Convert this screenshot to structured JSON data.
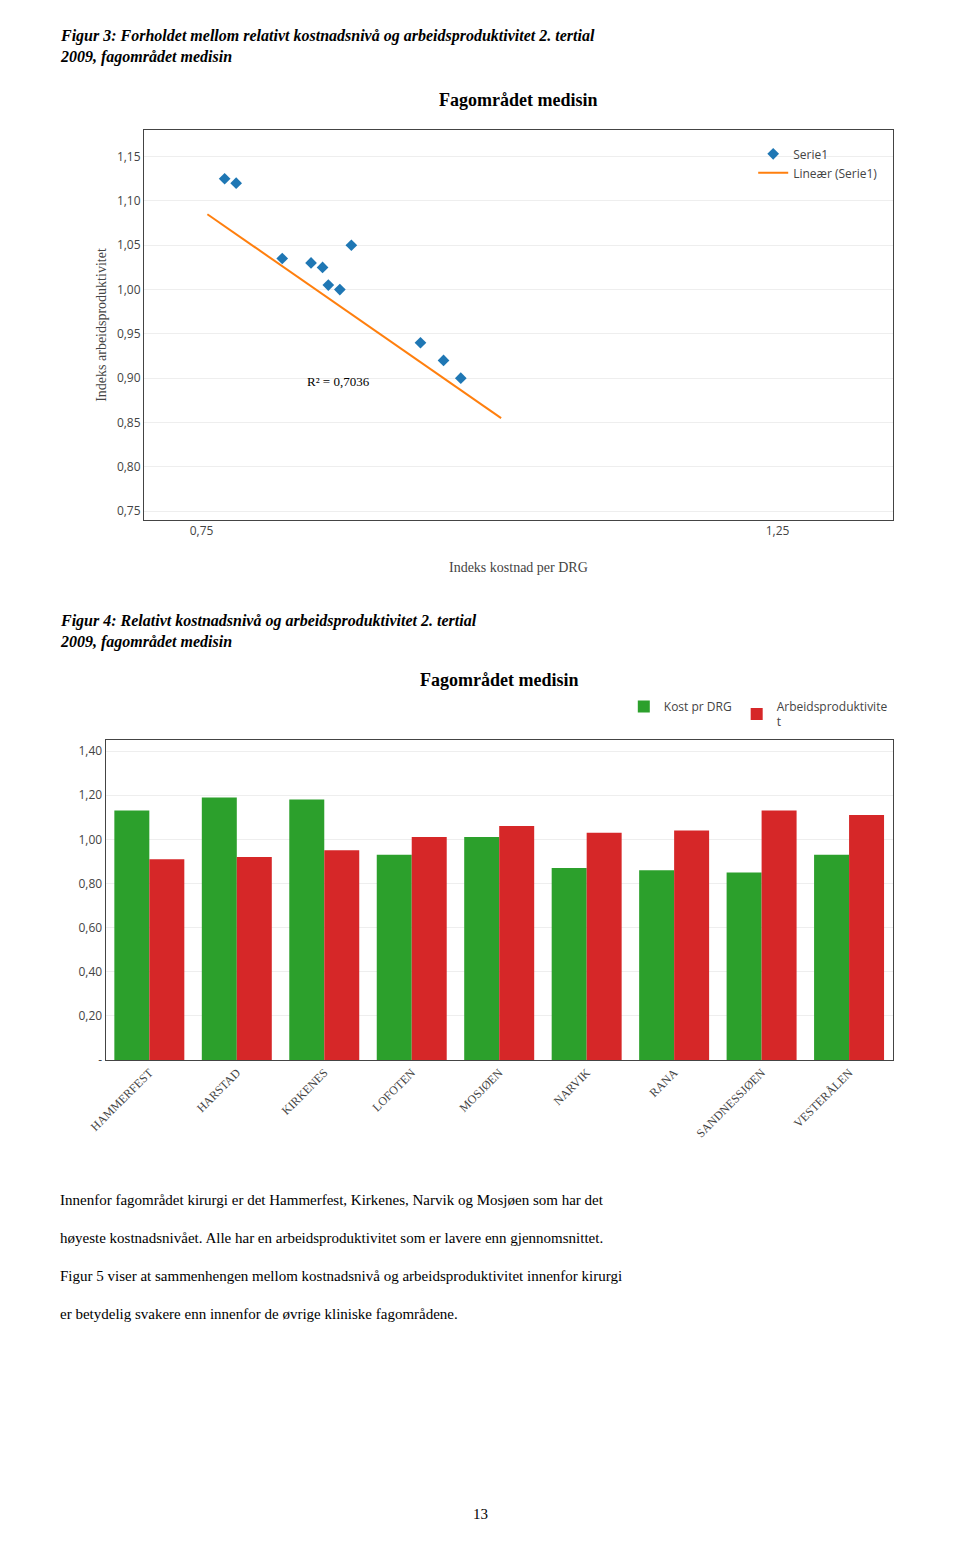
{
  "chart_data": [
    {
      "type": "scatter",
      "title": "Fagområdet medisin",
      "subtitle": "Figur 3: Forholdet mellom relativt kostnadsnivå og arbeidsproduktivitet 2. tertial\n2009, fagområdet medisin",
      "xlabel": "Indeks kostnad per DRG",
      "ylabel": "Indeks arbeidsproduktivitet",
      "series": [
        {
          "name": "Serie1",
          "type": "scatter",
          "marker": "diamond",
          "x": [
            0.77,
            0.78,
            0.82,
            0.845,
            0.855,
            0.86,
            0.87,
            0.88,
            0.94,
            0.96,
            0.975
          ],
          "values": [
            1.125,
            1.12,
            1.035,
            1.03,
            1.025,
            1.005,
            1.0,
            1.05,
            0.94,
            0.92,
            0.9
          ]
        },
        {
          "name": "Lineær (Serie1)",
          "type": "line",
          "line_style": "solid",
          "x": [
            0.755,
            1.01
          ],
          "values": [
            1.085,
            0.855
          ]
        }
      ],
      "annotations": [
        {
          "text": "R² = 0,7036",
          "x": 0.84,
          "y": 0.896
        }
      ],
      "xlim": [
        0.7,
        1.35
      ],
      "ylim": [
        0.74,
        1.18
      ],
      "xticks": [
        {
          "value": 0.75,
          "label": "0,75"
        },
        {
          "value": 1.25,
          "label": "1,25"
        }
      ],
      "yticks": [
        {
          "value": 0.75,
          "label": "0,75"
        },
        {
          "value": 0.8,
          "label": "0,80"
        },
        {
          "value": 0.85,
          "label": "0,85"
        },
        {
          "value": 0.9,
          "label": "0,90"
        },
        {
          "value": 0.95,
          "label": "0,95"
        },
        {
          "value": 1.0,
          "label": "1,00"
        },
        {
          "value": 1.05,
          "label": "1,05"
        },
        {
          "value": 1.1,
          "label": "1,10"
        },
        {
          "value": 1.15,
          "label": "1,15"
        }
      ],
      "grid": "y",
      "legend": "upper right"
    },
    {
      "type": "bar",
      "title": "Fagområdet medisin",
      "subtitle": "Figur 4: Relativt kostnadsnivå og arbeidsproduktivitet 2. tertial\n2009, fagområdet medisin",
      "categories": [
        "HAMMERFEST",
        "HARSTAD",
        "KIRKENES",
        "LOFOTEN",
        "MOSJØEN",
        "NARVIK",
        "RANA",
        "SANDNESSJØEN",
        "VESTERÅLEN"
      ],
      "series": [
        {
          "name": "Kost pr DRG",
          "values": [
            1.13,
            1.19,
            1.18,
            0.93,
            1.01,
            0.87,
            0.86,
            0.85,
            0.93
          ]
        },
        {
          "name": "Arbeidsproduktivite\nt",
          "values": [
            0.91,
            0.92,
            0.95,
            1.01,
            1.06,
            1.03,
            1.04,
            1.13,
            1.11
          ]
        }
      ],
      "ylim": [
        0,
        1.45
      ],
      "yticks": [
        {
          "value": 0.0,
          "label": "-"
        },
        {
          "value": 0.2,
          "label": "0,20"
        },
        {
          "value": 0.4,
          "label": "0,40"
        },
        {
          "value": 0.6,
          "label": "0,60"
        },
        {
          "value": 0.8,
          "label": "0,80"
        },
        {
          "value": 1.0,
          "label": "1,00"
        },
        {
          "value": 1.2,
          "label": "1,20"
        },
        {
          "value": 1.4,
          "label": "1,40"
        }
      ],
      "grid": "y",
      "legend": "upper right"
    }
  ],
  "annotations": [
    "Innenfor fagområdet kirurgi er det Hammerfest, Kirkenes, Narvik og Mosjøen som har det",
    "høyeste kostnadsnivået. Alle har en arbeidsproduktivitet som er lavere enn gjennomsnittet.",
    "Figur 5 viser at sammenhengen mellom kostnadsnivå og arbeidsproduktivitet innenfor kirurgi",
    "er betydelig svakere enn innenfor de øvrige kliniske fagområdene.",
    "13"
  ]
}
